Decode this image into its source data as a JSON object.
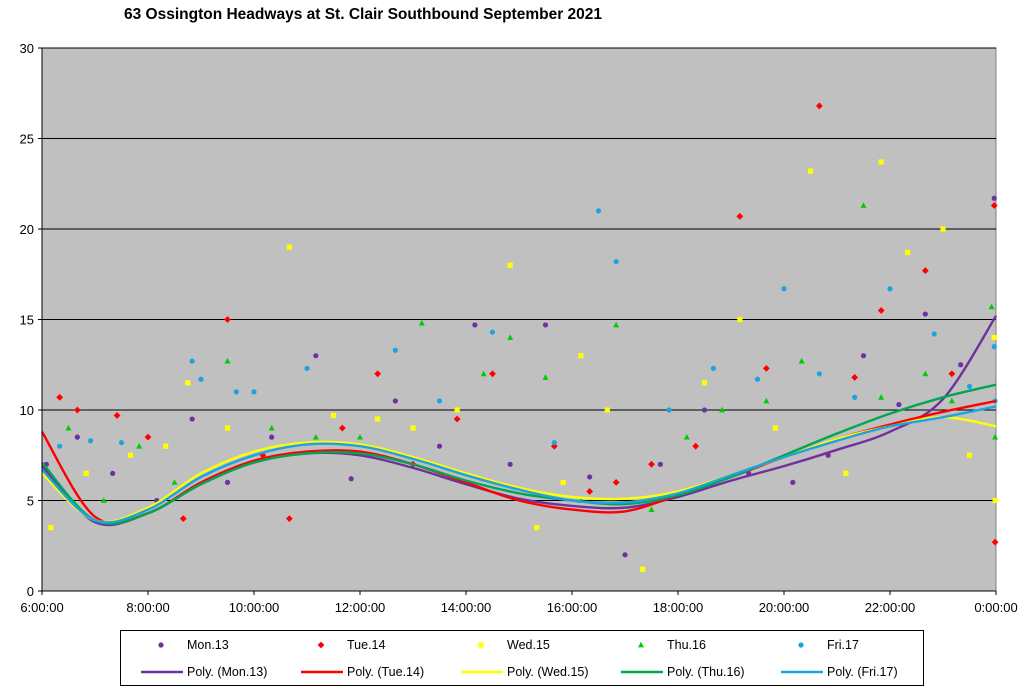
{
  "chart_data": {
    "type": "scatter",
    "title": "63 Ossington Headways at St. Clair Southbound September 2021",
    "xlabel": "",
    "ylabel": "",
    "xlim": [
      "6:00:00",
      "0:00:00"
    ],
    "ylim": [
      0,
      30
    ],
    "x_tick_labels": [
      "6:00:00",
      "8:00:00",
      "10:00:00",
      "12:00:00",
      "14:00:00",
      "16:00:00",
      "18:00:00",
      "20:00:00",
      "22:00:00",
      "0:00:00"
    ],
    "y_tick_labels": [
      "0",
      "5",
      "10",
      "15",
      "20",
      "25",
      "30"
    ],
    "grid": "horizontal",
    "background": "#c0c0c0",
    "legend_placement": "bottom",
    "series": [
      {
        "name": "Mon.13",
        "marker": "circle",
        "color": "#7030a0",
        "points": [
          [
            "6:05",
            7
          ],
          [
            "6:40",
            8.5
          ],
          [
            "7:20",
            6.5
          ],
          [
            "8:10",
            5
          ],
          [
            "8:50",
            9.5
          ],
          [
            "9:30",
            6
          ],
          [
            "10:20",
            8.5
          ],
          [
            "11:10",
            13
          ],
          [
            "11:50",
            6.2
          ],
          [
            "12:40",
            10.5
          ],
          [
            "13:30",
            8
          ],
          [
            "14:10",
            14.7
          ],
          [
            "14:50",
            7
          ],
          [
            "15:30",
            14.7
          ],
          [
            "16:20",
            6.3
          ],
          [
            "17:00",
            2
          ],
          [
            "17:40",
            7
          ],
          [
            "18:30",
            10
          ],
          [
            "19:20",
            6.5
          ],
          [
            "20:10",
            6
          ],
          [
            "20:50",
            7.5
          ],
          [
            "21:30",
            13
          ],
          [
            "22:10",
            10.3
          ],
          [
            "22:40",
            15.3
          ],
          [
            "23:20",
            12.5
          ],
          [
            "23:58",
            21.7
          ]
        ]
      },
      {
        "name": "Tue.14",
        "marker": "diamond",
        "color": "#ff0000",
        "points": [
          [
            "6:20",
            10.7
          ],
          [
            "6:40",
            10
          ],
          [
            "7:25",
            9.7
          ],
          [
            "8:00",
            8.5
          ],
          [
            "8:40",
            4
          ],
          [
            "9:30",
            15
          ],
          [
            "10:10",
            7.5
          ],
          [
            "10:40",
            4
          ],
          [
            "11:40",
            9
          ],
          [
            "12:20",
            12
          ],
          [
            "13:00",
            7
          ],
          [
            "13:50",
            9.5
          ],
          [
            "14:30",
            12
          ],
          [
            "15:40",
            8
          ],
          [
            "16:20",
            5.5
          ],
          [
            "16:50",
            6
          ],
          [
            "17:30",
            7
          ],
          [
            "18:20",
            8
          ],
          [
            "19:10",
            20.7
          ],
          [
            "19:40",
            12.3
          ],
          [
            "20:40",
            26.8
          ],
          [
            "21:20",
            11.8
          ],
          [
            "21:50",
            15.5
          ],
          [
            "22:40",
            17.7
          ],
          [
            "23:10",
            12
          ],
          [
            "23:58",
            21.3
          ],
          [
            "23:59",
            2.7
          ]
        ]
      },
      {
        "name": "Wed.15",
        "marker": "square",
        "color": "#ffff00",
        "points": [
          [
            "6:10",
            3.5
          ],
          [
            "6:50",
            6.5
          ],
          [
            "7:40",
            7.5
          ],
          [
            "8:20",
            8
          ],
          [
            "8:45",
            11.5
          ],
          [
            "9:30",
            9
          ],
          [
            "10:40",
            19
          ],
          [
            "11:30",
            9.7
          ],
          [
            "12:20",
            9.5
          ],
          [
            "13:00",
            9
          ],
          [
            "13:50",
            10
          ],
          [
            "14:50",
            18
          ],
          [
            "15:20",
            3.5
          ],
          [
            "15:50",
            6
          ],
          [
            "16:10",
            13
          ],
          [
            "16:40",
            10
          ],
          [
            "17:20",
            1.2
          ],
          [
            "18:30",
            11.5
          ],
          [
            "19:10",
            15
          ],
          [
            "19:50",
            9
          ],
          [
            "20:30",
            23.2
          ],
          [
            "21:10",
            6.5
          ],
          [
            "21:50",
            23.7
          ],
          [
            "22:20",
            18.7
          ],
          [
            "23:00",
            20
          ],
          [
            "23:30",
            7.5
          ],
          [
            "23:58",
            14
          ],
          [
            "23:59",
            5
          ]
        ]
      },
      {
        "name": "Thu.16",
        "marker": "triangle",
        "color": "#00cc00",
        "points": [
          [
            "6:30",
            9
          ],
          [
            "7:10",
            5
          ],
          [
            "7:50",
            8
          ],
          [
            "8:30",
            6
          ],
          [
            "9:30",
            12.7
          ],
          [
            "10:20",
            9
          ],
          [
            "11:10",
            8.5
          ],
          [
            "12:00",
            8.5
          ],
          [
            "13:10",
            14.8
          ],
          [
            "14:20",
            12
          ],
          [
            "14:50",
            14
          ],
          [
            "15:30",
            11.8
          ],
          [
            "16:10",
            5
          ],
          [
            "16:50",
            14.7
          ],
          [
            "17:30",
            4.5
          ],
          [
            "18:10",
            8.5
          ],
          [
            "18:50",
            10
          ],
          [
            "19:40",
            10.5
          ],
          [
            "20:20",
            12.7
          ],
          [
            "21:30",
            21.3
          ],
          [
            "21:50",
            10.7
          ],
          [
            "22:40",
            12
          ],
          [
            "23:10",
            10.5
          ],
          [
            "23:55",
            15.7
          ],
          [
            "23:59",
            8.5
          ]
        ]
      },
      {
        "name": "Fri.17",
        "marker": "circle",
        "color": "#1fa2e0",
        "points": [
          [
            "6:20",
            8
          ],
          [
            "6:55",
            8.3
          ],
          [
            "7:30",
            8.2
          ],
          [
            "8:50",
            12.7
          ],
          [
            "9:00",
            11.7
          ],
          [
            "9:40",
            11
          ],
          [
            "10:00",
            11
          ],
          [
            "11:00",
            12.3
          ],
          [
            "12:40",
            13.3
          ],
          [
            "13:30",
            10.5
          ],
          [
            "14:30",
            14.3
          ],
          [
            "15:40",
            8.2
          ],
          [
            "16:30",
            21
          ],
          [
            "16:50",
            18.2
          ],
          [
            "17:50",
            10
          ],
          [
            "18:40",
            12.3
          ],
          [
            "19:30",
            11.7
          ],
          [
            "20:00",
            16.7
          ],
          [
            "20:40",
            12
          ],
          [
            "21:20",
            10.7
          ],
          [
            "22:00",
            16.7
          ],
          [
            "22:50",
            14.2
          ],
          [
            "23:30",
            11.3
          ],
          [
            "23:58",
            13.5
          ],
          [
            "23:59",
            10.5
          ]
        ]
      }
    ],
    "trendlines": [
      {
        "name": "Poly. (Mon.13)",
        "type": "polynomial",
        "color": "#7030a0",
        "points": [
          [
            "6:00",
            6.9
          ],
          [
            "7:00",
            3.8
          ],
          [
            "8:00",
            4.3
          ],
          [
            "9:00",
            5.9
          ],
          [
            "10:00",
            7.1
          ],
          [
            "11:00",
            7.6
          ],
          [
            "12:00",
            7.5
          ],
          [
            "13:00",
            6.8
          ],
          [
            "14:00",
            5.9
          ],
          [
            "15:00",
            5.1
          ],
          [
            "16:00",
            4.7
          ],
          [
            "17:00",
            4.6
          ],
          [
            "18:00",
            5.2
          ],
          [
            "19:00",
            6.1
          ],
          [
            "20:00",
            6.9
          ],
          [
            "21:00",
            7.8
          ],
          [
            "22:00",
            8.8
          ],
          [
            "23:00",
            10.6
          ],
          [
            "0:00",
            15.2
          ]
        ]
      },
      {
        "name": "Poly. (Tue.14)",
        "type": "polynomial",
        "color": "#ff0000",
        "points": [
          [
            "6:00",
            8.8
          ],
          [
            "7:00",
            4.1
          ],
          [
            "8:00",
            4.3
          ],
          [
            "9:00",
            6.0
          ],
          [
            "10:00",
            7.2
          ],
          [
            "11:00",
            7.7
          ],
          [
            "12:00",
            7.7
          ],
          [
            "13:00",
            7.0
          ],
          [
            "14:00",
            6.0
          ],
          [
            "15:00",
            5.0
          ],
          [
            "16:00",
            4.5
          ],
          [
            "17:00",
            4.4
          ],
          [
            "18:00",
            5.3
          ],
          [
            "19:00",
            6.3
          ],
          [
            "20:00",
            7.4
          ],
          [
            "21:00",
            8.4
          ],
          [
            "22:00",
            9.2
          ],
          [
            "23:00",
            9.9
          ],
          [
            "0:00",
            10.5
          ]
        ]
      },
      {
        "name": "Poly. (Wed.15)",
        "type": "polynomial",
        "color": "#ffff00",
        "points": [
          [
            "6:00",
            6.5
          ],
          [
            "7:00",
            3.9
          ],
          [
            "8:00",
            4.6
          ],
          [
            "9:00",
            6.5
          ],
          [
            "10:00",
            7.7
          ],
          [
            "11:00",
            8.2
          ],
          [
            "12:00",
            8.1
          ],
          [
            "13:00",
            7.4
          ],
          [
            "14:00",
            6.5
          ],
          [
            "15:00",
            5.7
          ],
          [
            "16:00",
            5.2
          ],
          [
            "17:00",
            5.1
          ],
          [
            "18:00",
            5.5
          ],
          [
            "19:00",
            6.4
          ],
          [
            "20:00",
            7.4
          ],
          [
            "21:00",
            8.4
          ],
          [
            "22:00",
            9.1
          ],
          [
            "23:00",
            9.6
          ],
          [
            "0:00",
            9.1
          ]
        ]
      },
      {
        "name": "Poly. (Thu.16)",
        "type": "polynomial",
        "color": "#00a651",
        "points": [
          [
            "6:00",
            7.1
          ],
          [
            "7:00",
            3.9
          ],
          [
            "8:00",
            4.3
          ],
          [
            "9:00",
            5.9
          ],
          [
            "10:00",
            7.1
          ],
          [
            "11:00",
            7.6
          ],
          [
            "12:00",
            7.6
          ],
          [
            "13:00",
            7.0
          ],
          [
            "14:00",
            6.1
          ],
          [
            "15:00",
            5.4
          ],
          [
            "16:00",
            5.0
          ],
          [
            "17:00",
            4.8
          ],
          [
            "18:00",
            5.3
          ],
          [
            "19:00",
            6.3
          ],
          [
            "20:00",
            7.5
          ],
          [
            "21:00",
            8.7
          ],
          [
            "22:00",
            9.8
          ],
          [
            "23:00",
            10.7
          ],
          [
            "0:00",
            11.4
          ]
        ]
      },
      {
        "name": "Poly. (Fri.17)",
        "type": "polynomial",
        "color": "#1fa2e0",
        "points": [
          [
            "6:00",
            6.7
          ],
          [
            "7:00",
            3.9
          ],
          [
            "8:00",
            4.5
          ],
          [
            "9:00",
            6.3
          ],
          [
            "10:00",
            7.5
          ],
          [
            "11:00",
            8.1
          ],
          [
            "12:00",
            8.0
          ],
          [
            "13:00",
            7.3
          ],
          [
            "14:00",
            6.4
          ],
          [
            "15:00",
            5.6
          ],
          [
            "16:00",
            5.0
          ],
          [
            "17:00",
            4.9
          ],
          [
            "18:00",
            5.4
          ],
          [
            "19:00",
            6.4
          ],
          [
            "20:00",
            7.4
          ],
          [
            "21:00",
            8.3
          ],
          [
            "22:00",
            9.1
          ],
          [
            "23:00",
            9.6
          ],
          [
            "0:00",
            10.2
          ]
        ]
      }
    ]
  }
}
